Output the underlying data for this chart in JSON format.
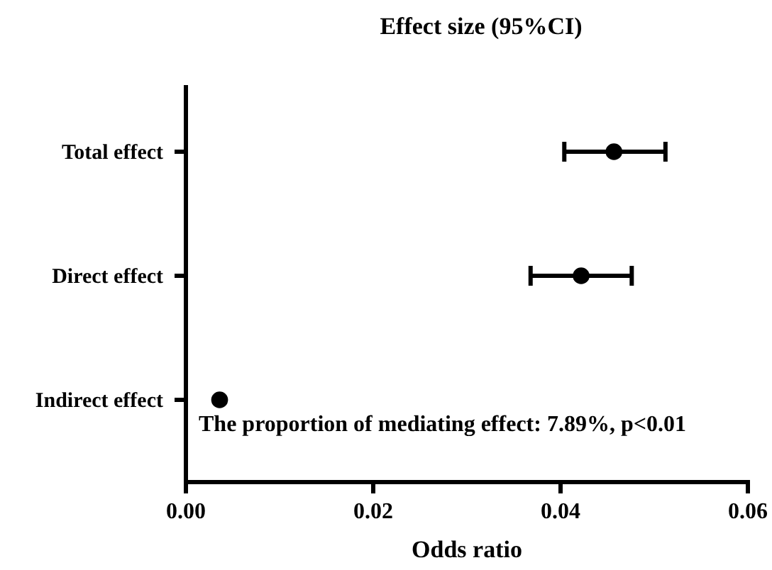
{
  "chart_data": {
    "type": "scatter",
    "title": "Effect size (95%CI)",
    "xlabel": "Odds ratio",
    "categories": [
      "Total effect",
      "Direct effect",
      "Indirect effect"
    ],
    "orientation": "horizontal",
    "values": [
      0.0457,
      0.0422,
      0.0036
    ],
    "errors": [
      [
        0.0404,
        0.0512
      ],
      [
        0.0368,
        0.0476
      ],
      null
    ],
    "color": "#000000",
    "marker": "circle",
    "xlim": [
      0,
      0.06
    ],
    "xticks": [
      {
        "value": 0,
        "label": "0.00"
      },
      {
        "value": 0.02,
        "label": "0.02"
      },
      {
        "value": 0.04,
        "label": "0.04"
      },
      {
        "value": 0.06,
        "label": "0.06"
      }
    ],
    "grid": false,
    "annotations": [
      "The proportion of mediating effect: 7.89%, p<0.01"
    ]
  }
}
